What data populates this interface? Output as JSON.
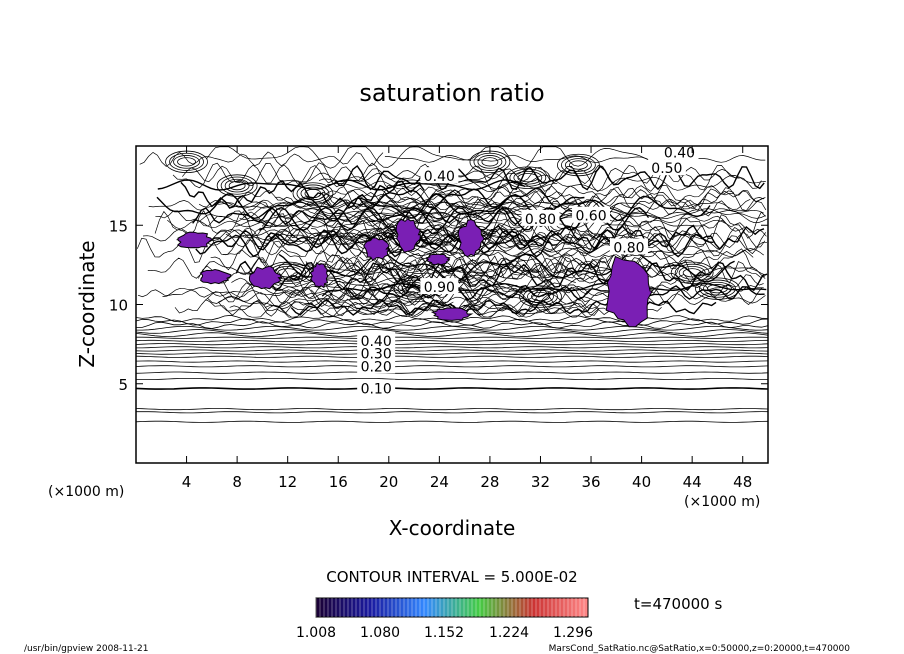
{
  "chart_data": {
    "type": "contour",
    "title": "saturation ratio",
    "xlabel": "X-coordinate",
    "ylabel": "Z-coordinate",
    "x_unit": "(×1000 m)",
    "y_unit": "(×1000 m)",
    "xlim": [
      0,
      50
    ],
    "ylim": [
      0,
      20
    ],
    "x_ticks": [
      4,
      8,
      12,
      16,
      20,
      24,
      28,
      32,
      36,
      40,
      44,
      48
    ],
    "y_ticks": [
      5,
      10,
      15
    ],
    "contour_interval_text": "CONTOUR INTERVAL = 5.000E-02",
    "time_label": "t=470000 s",
    "contour_labels": [
      {
        "text": "0.10",
        "x": 19,
        "z": 4.7
      },
      {
        "text": "0.20",
        "x": 19,
        "z": 6.1
      },
      {
        "text": "0.30",
        "x": 19,
        "z": 6.9
      },
      {
        "text": "0.40",
        "x": 19,
        "z": 7.7
      },
      {
        "text": "0.40",
        "x": 24,
        "z": 18.1
      },
      {
        "text": "0.40",
        "x": 43,
        "z": 19.6
      },
      {
        "text": "0.50",
        "x": 42,
        "z": 18.6
      },
      {
        "text": "0.60",
        "x": 36,
        "z": 15.6
      },
      {
        "text": "0.80",
        "x": 32,
        "z": 15.4
      },
      {
        "text": "0.80",
        "x": 39,
        "z": 13.6
      },
      {
        "text": "0.90",
        "x": 24,
        "z": 11.1
      }
    ],
    "colorbar": {
      "ticks": [
        "1.008",
        "1.080",
        "1.152",
        "1.224",
        "1.296"
      ],
      "colors": [
        "#1a0033",
        "#1a1aa0",
        "#3388ff",
        "#44cc44",
        "#cc3333",
        "#ff8888"
      ]
    },
    "supersaturated_regions": [
      {
        "x": [
          3.2,
          6.0
        ],
        "z": [
          13.5,
          14.6
        ]
      },
      {
        "x": [
          5.0,
          7.5
        ],
        "z": [
          11.3,
          12.2
        ]
      },
      {
        "x": [
          9.0,
          11.5
        ],
        "z": [
          11.0,
          12.4
        ]
      },
      {
        "x": [
          13.8,
          15.2
        ],
        "z": [
          11.0,
          12.6
        ]
      },
      {
        "x": [
          18.0,
          20.0
        ],
        "z": [
          12.8,
          14.2
        ]
      },
      {
        "x": [
          20.5,
          22.5
        ],
        "z": [
          13.3,
          15.5
        ]
      },
      {
        "x": [
          25.5,
          27.5
        ],
        "z": [
          13.0,
          15.3
        ]
      },
      {
        "x": [
          23.0,
          24.8
        ],
        "z": [
          12.5,
          13.2
        ]
      },
      {
        "x": [
          37.0,
          41.0
        ],
        "z": [
          8.5,
          13.2
        ]
      },
      {
        "x": [
          23.5,
          26.5
        ],
        "z": [
          9.0,
          9.8
        ]
      }
    ],
    "purple_color": "#7a1fb4"
  },
  "footer": {
    "left": "/usr/bin/gpview   2008-11-21",
    "right": "MarsCond_SatRatio.nc@SatRatio,x=0:50000,z=0:20000,t=470000"
  }
}
